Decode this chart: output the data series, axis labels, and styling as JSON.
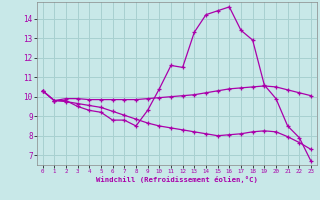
{
  "xlabel": "Windchill (Refroidissement éolien,°C)",
  "background_color": "#c8e8e8",
  "grid_color": "#a8d0d0",
  "line_color": "#aa00aa",
  "xlim": [
    -0.5,
    23.5
  ],
  "ylim": [
    6.5,
    14.85
  ],
  "yticks": [
    7,
    8,
    9,
    10,
    11,
    12,
    13,
    14
  ],
  "xticks": [
    0,
    1,
    2,
    3,
    4,
    5,
    6,
    7,
    8,
    9,
    10,
    11,
    12,
    13,
    14,
    15,
    16,
    17,
    18,
    19,
    20,
    21,
    22,
    23
  ],
  "line1_x": [
    0,
    1,
    2,
    3,
    4,
    5,
    6,
    7,
    8,
    9,
    10,
    11,
    12,
    13,
    14,
    15,
    16,
    17,
    18,
    19,
    20,
    21,
    22,
    23
  ],
  "line1_y": [
    10.3,
    9.8,
    9.8,
    9.5,
    9.3,
    9.2,
    8.8,
    8.8,
    8.5,
    9.3,
    10.4,
    11.6,
    11.5,
    13.3,
    14.2,
    14.4,
    14.6,
    13.4,
    12.9,
    10.6,
    9.9,
    8.5,
    7.9,
    6.7
  ],
  "line2_x": [
    0,
    1,
    2,
    3,
    4,
    5,
    6,
    7,
    8,
    9,
    10,
    11,
    12,
    13,
    14,
    15,
    16,
    17,
    18,
    19,
    20,
    21,
    22,
    23
  ],
  "line2_y": [
    10.3,
    9.8,
    9.9,
    9.9,
    9.85,
    9.85,
    9.85,
    9.85,
    9.85,
    9.9,
    9.95,
    10.0,
    10.05,
    10.1,
    10.2,
    10.3,
    10.4,
    10.45,
    10.5,
    10.55,
    10.5,
    10.35,
    10.2,
    10.05
  ],
  "line3_x": [
    0,
    1,
    2,
    3,
    4,
    5,
    6,
    7,
    8,
    9,
    10,
    11,
    12,
    13,
    14,
    15,
    16,
    17,
    18,
    19,
    20,
    21,
    22,
    23
  ],
  "line3_y": [
    10.3,
    9.8,
    9.75,
    9.65,
    9.55,
    9.45,
    9.25,
    9.05,
    8.85,
    8.65,
    8.5,
    8.4,
    8.3,
    8.2,
    8.1,
    8.0,
    8.05,
    8.1,
    8.2,
    8.25,
    8.2,
    7.95,
    7.65,
    7.3
  ]
}
